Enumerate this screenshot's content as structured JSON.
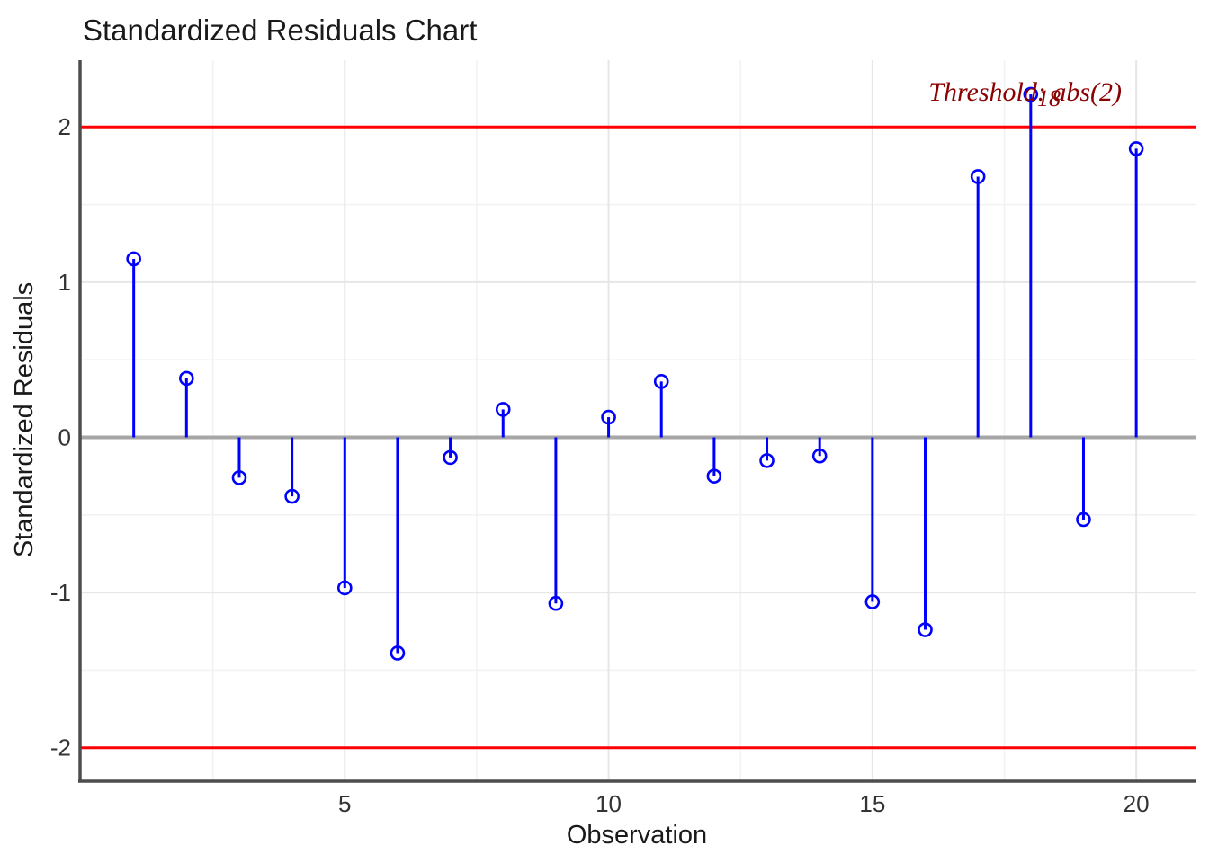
{
  "chart_data": {
    "type": "scatter",
    "style": "stem-lollipop",
    "title": "Standardized Residuals Chart",
    "xlabel": "Observation",
    "ylabel": "Standardized Residuals",
    "x": [
      1,
      2,
      3,
      4,
      5,
      6,
      7,
      8,
      9,
      10,
      11,
      12,
      13,
      14,
      15,
      16,
      17,
      18,
      19,
      20
    ],
    "values": [
      1.15,
      0.38,
      -0.26,
      -0.38,
      -0.97,
      -1.39,
      -0.13,
      0.18,
      -1.07,
      0.13,
      0.36,
      -0.25,
      -0.15,
      -0.12,
      -1.06,
      -1.24,
      1.68,
      2.21,
      -0.53,
      1.86
    ],
    "xlim": [
      0,
      21.14
    ],
    "ylim": [
      -2.21,
      2.43
    ],
    "x_major_ticks": [
      5,
      10,
      15,
      20
    ],
    "x_tick_labels": [
      "5",
      "10",
      "15",
      "20"
    ],
    "y_major_ticks": [
      2,
      1,
      0,
      -1,
      -2
    ],
    "y_tick_labels": [
      "2",
      "1",
      "0",
      "-1",
      "-2"
    ],
    "x_minor_gridlines": [
      2.5,
      7.5,
      12.5,
      17.5
    ],
    "y_major_gridlines": [
      2,
      1,
      -1,
      -2
    ],
    "y_minor_gridlines": [
      1.5,
      0.5,
      -0.5,
      -1.5
    ],
    "thresholds": {
      "values": [
        2,
        -2
      ],
      "label": "Threshold: abs(2)"
    },
    "labeled_points": [
      {
        "x": 18,
        "label": "18"
      }
    ],
    "grid": true,
    "legend": false,
    "colors": {
      "stem": "#0000FF",
      "point": "#0000FF",
      "zero_line": "#A6A6A6",
      "axis_line": "#4D4D4D",
      "grid_major": "#E6E6E6",
      "grid_minor": "#F2F2F2",
      "threshold": "#FF0000",
      "annotation": "#8B0000",
      "text": "#1A1A1A"
    }
  }
}
